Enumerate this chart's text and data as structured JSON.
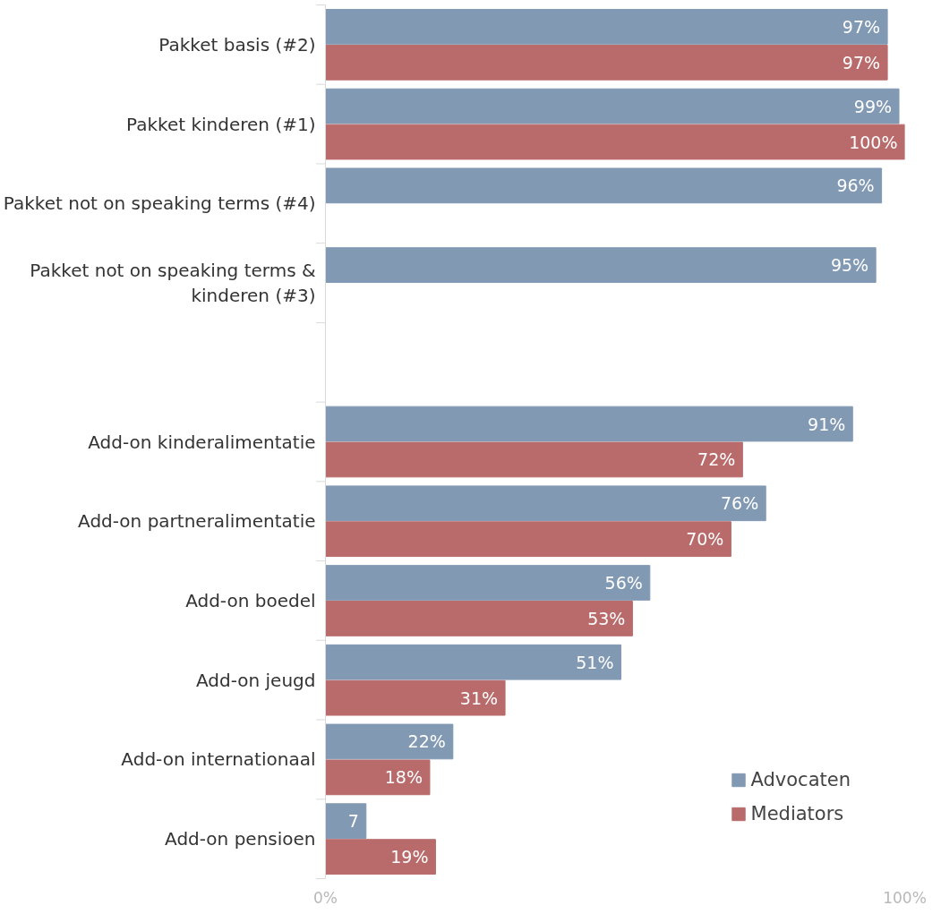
{
  "chart_data": {
    "type": "bar",
    "orientation": "horizontal",
    "categories": [
      "Pakket basis (#2)",
      "Pakket kinderen (#1)",
      "Pakket not on speaking terms (#4)",
      "Pakket not on speaking terms & kinderen (#3)",
      null,
      "Add-on kinderalimentatie",
      "Add-on partneralimentatie",
      "Add-on boedel",
      "Add-on jeugd",
      "Add-on internationaal",
      "Add-on pensioen"
    ],
    "series": [
      {
        "name": "Advocaten",
        "color": "#8299b4",
        "values": [
          97,
          99,
          96,
          95,
          null,
          91,
          76,
          56,
          51,
          22,
          7
        ],
        "value_labels": [
          "97%",
          "99%",
          "96%",
          "95%",
          null,
          "91%",
          "76%",
          "56%",
          "51%",
          "22%",
          "7"
        ]
      },
      {
        "name": "Mediators",
        "color": "#b96b6b",
        "values": [
          97,
          100,
          null,
          null,
          null,
          72,
          70,
          53,
          31,
          18,
          19
        ],
        "value_labels": [
          "97%",
          "100%",
          null,
          null,
          null,
          "72%",
          "70%",
          "53%",
          "31%",
          "18%",
          "19%"
        ]
      }
    ],
    "xlim": [
      0,
      100
    ],
    "xticks": [
      {
        "value": 0,
        "label": "0%"
      },
      {
        "value": 100,
        "label": "100%"
      }
    ],
    "grid": false,
    "legend": "bottom right"
  }
}
